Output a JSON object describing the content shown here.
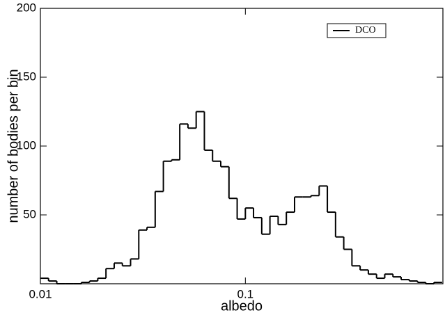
{
  "chart_data": {
    "type": "histogram",
    "xlabel": "albedo",
    "ylabel": "number of bodies per bin",
    "xscale": "log",
    "xlim": [
      0.01,
      0.92
    ],
    "xticks": [
      0.01,
      0.1
    ],
    "ylim": [
      0,
      200
    ],
    "yticks": [
      50,
      100,
      150,
      200
    ],
    "legend": "upper right",
    "bins": [
      0.01,
      0.01096,
      0.01202,
      0.01318,
      0.01445,
      0.01585,
      0.01738,
      0.01905,
      0.02089,
      0.02291,
      0.02512,
      0.02754,
      0.0302,
      0.03311,
      0.03631,
      0.03981,
      0.04365,
      0.04786,
      0.05248,
      0.05754,
      0.0631,
      0.06918,
      0.07586,
      0.08318,
      0.0912,
      0.1,
      0.1096,
      0.1202,
      0.1318,
      0.1445,
      0.1585,
      0.1738,
      0.1905,
      0.2089,
      0.2291,
      0.2512,
      0.2754,
      0.302,
      0.3311,
      0.3631,
      0.3981,
      0.4365,
      0.4786,
      0.5248,
      0.5754,
      0.631,
      0.6918,
      0.7586,
      0.8318,
      0.912
    ],
    "series": [
      {
        "name": "DCO",
        "color": "#000000",
        "values": [
          4,
          2,
          0,
          0,
          0,
          1,
          2,
          4,
          11,
          15,
          13,
          18,
          39,
          41,
          67,
          89,
          90,
          116,
          113,
          125,
          97,
          89,
          85,
          62,
          47,
          55,
          48,
          36,
          49,
          43,
          52,
          63,
          63,
          64,
          71,
          52,
          34,
          25,
          13,
          10,
          7,
          4,
          7,
          5,
          3,
          2,
          1,
          0,
          1
        ]
      }
    ]
  }
}
